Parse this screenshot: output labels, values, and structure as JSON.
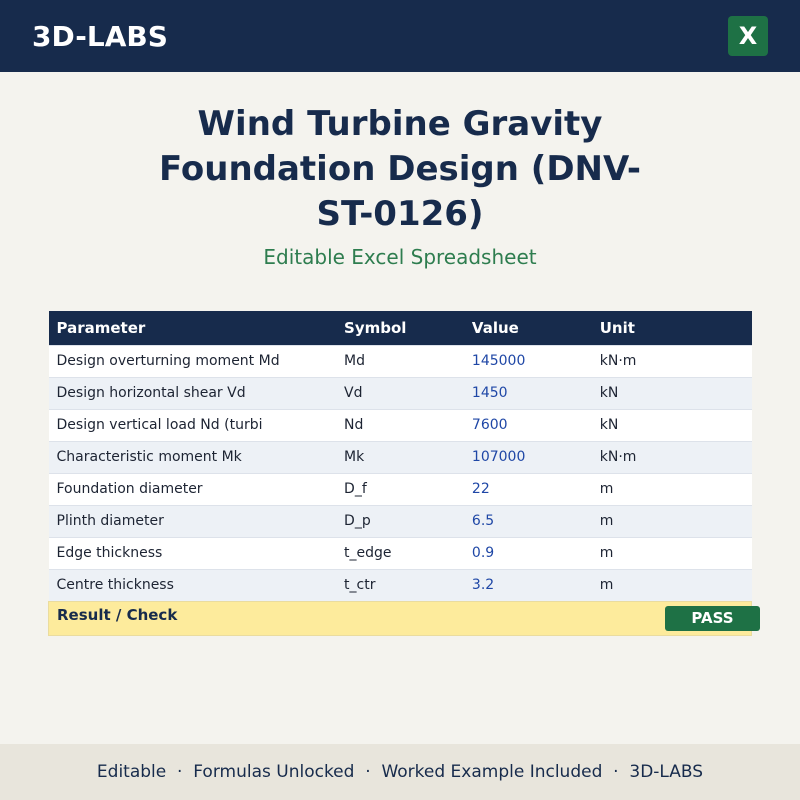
{
  "header": {
    "brand": "3D-LABS",
    "icon": "X"
  },
  "title": "Wind Turbine Gravity Foundation Design (DNV-ST-0126)",
  "subtitle": "Editable Excel Spreadsheet",
  "table": {
    "columns": [
      "Parameter",
      "Symbol",
      "Value",
      "Unit"
    ],
    "rows": [
      [
        "Design overturning moment Md",
        "Md",
        145000,
        "kN·m"
      ],
      [
        "Design horizontal shear Vd",
        "Vd",
        1450,
        "kN"
      ],
      [
        "Design vertical load Nd (turbi",
        "Nd",
        7600,
        "kN"
      ],
      [
        "Characteristic moment Mk",
        "Mk",
        107000,
        "kN·m"
      ],
      [
        "Foundation diameter",
        "D_f",
        22,
        "m"
      ],
      [
        "Plinth diameter",
        "D_p",
        6.5,
        "m"
      ],
      [
        "Edge thickness",
        "t_edge",
        0.9,
        "m"
      ],
      [
        "Centre thickness",
        "t_ctr",
        3.2,
        "m"
      ]
    ],
    "result": {
      "label": "Result / Check",
      "status": "PASS"
    }
  },
  "footer": "Editable  ·  Formulas Unlocked  ·  Worked Example Included  ·  3D-LABS"
}
